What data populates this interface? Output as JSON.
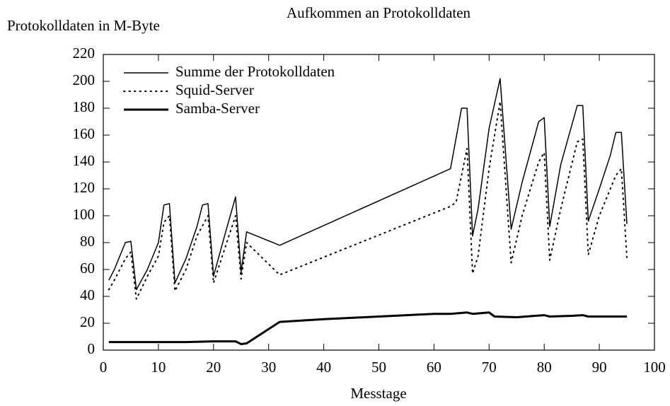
{
  "chart_data": {
    "type": "line",
    "title": "Aufkommen an Protokolldaten",
    "ylabel": "Protokolldaten in M-Byte",
    "xlabel": "Messtage",
    "xlim": [
      0,
      100
    ],
    "xticks": [
      0,
      10,
      20,
      30,
      40,
      50,
      60,
      70,
      80,
      90,
      100
    ],
    "ylim": [
      0,
      220
    ],
    "yticks": [
      0,
      20,
      40,
      60,
      80,
      100,
      120,
      140,
      160,
      180,
      200,
      220
    ],
    "legend": "upper left",
    "series": [
      {
        "name": "Summe der Protokolldaten",
        "color": "#000000",
        "style": "solid",
        "x": [
          1,
          2,
          4,
          5,
          6,
          8,
          10,
          11,
          12,
          13,
          15,
          17,
          18,
          19,
          20,
          22,
          24,
          25,
          26,
          32,
          63,
          65,
          66,
          67,
          68,
          70,
          72,
          74,
          76,
          79,
          80,
          81,
          83,
          86,
          87,
          88,
          90,
          92,
          93,
          94,
          95
        ],
        "values": [
          52,
          60,
          80,
          81,
          45,
          60,
          80,
          108,
          109,
          50,
          68,
          92,
          108,
          109,
          55,
          85,
          114,
          58,
          88,
          78,
          135,
          180,
          180,
          85,
          105,
          165,
          202,
          90,
          125,
          170,
          173,
          92,
          138,
          182,
          182,
          96,
          120,
          145,
          162,
          162,
          94
        ]
      },
      {
        "name": "Squid-Server",
        "color": "#000000",
        "style": "dotted",
        "x": [
          1,
          2,
          4,
          5,
          6,
          8,
          10,
          11,
          12,
          13,
          15,
          17,
          19,
          20,
          22,
          24,
          25,
          26,
          32,
          63,
          64,
          66,
          67,
          68,
          70,
          72,
          74,
          76,
          79,
          80,
          81,
          83,
          86,
          87,
          88,
          90,
          92,
          93,
          94,
          95
        ],
        "values": [
          45,
          52,
          68,
          73,
          38,
          55,
          70,
          95,
          100,
          44,
          60,
          85,
          100,
          50,
          75,
          100,
          53,
          80,
          56,
          107,
          110,
          150,
          57,
          70,
          135,
          185,
          65,
          100,
          140,
          147,
          67,
          105,
          155,
          157,
          71,
          100,
          120,
          130,
          135,
          69
        ]
      },
      {
        "name": "Samba-Server",
        "color": "#000000",
        "style": "thick",
        "x": [
          1,
          5,
          10,
          15,
          20,
          24,
          25,
          26,
          32,
          40,
          50,
          60,
          63,
          66,
          67,
          70,
          71,
          75,
          80,
          81,
          85,
          87,
          88,
          95
        ],
        "values": [
          6,
          6,
          6,
          6,
          6.5,
          6.5,
          4.5,
          5,
          21,
          23,
          25,
          27,
          27,
          28,
          27,
          28,
          25,
          24.5,
          26,
          25,
          25.5,
          26,
          25,
          25
        ]
      }
    ]
  }
}
